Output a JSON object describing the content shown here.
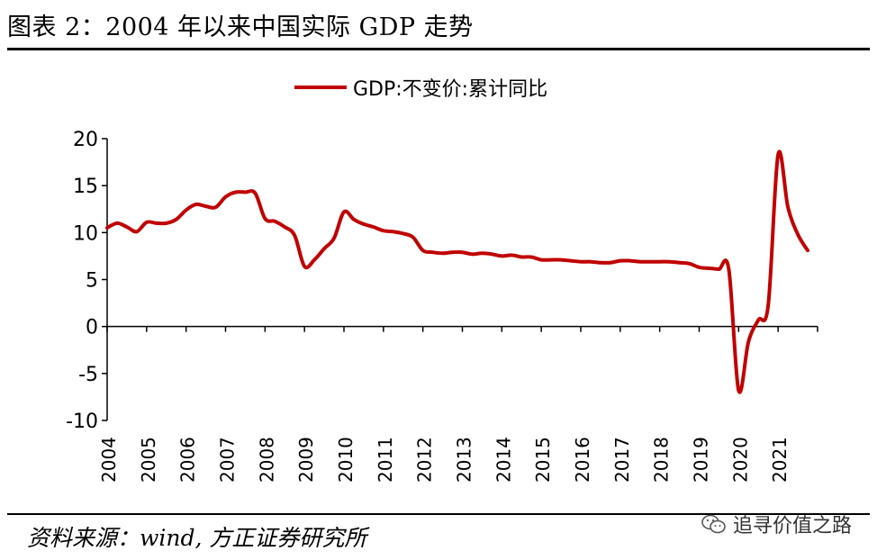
{
  "figure": {
    "title": "图表 2：2004 年以来中国实际 GDP 走势",
    "source": "资料来源：wind, 方正证券研究所",
    "watermark": "追寻价值之路"
  },
  "colors": {
    "line": "#C00000",
    "axis": "#000000"
  },
  "icons": {
    "watermark_icon": "wechat-icon"
  },
  "chart_data": {
    "type": "line",
    "title": "",
    "xlabel": "",
    "ylabel": "",
    "ylim": [
      -10,
      20
    ],
    "yticks": [
      -10,
      -5,
      0,
      5,
      10,
      15,
      20
    ],
    "xlim": [
      2004.0,
      2022.0
    ],
    "xticks": [
      "2004",
      "2005",
      "2006",
      "2007",
      "2008",
      "2009",
      "2010",
      "2011",
      "2012",
      "2013",
      "2014",
      "2015",
      "2016",
      "2017",
      "2018",
      "2019",
      "2020",
      "2021"
    ],
    "legend_position": "top-center",
    "grid": false,
    "series": [
      {
        "name": "GDP:不变价:累计同比",
        "color": "#C00000",
        "points": [
          [
            2004.0,
            10.5
          ],
          [
            2004.25,
            11.0
          ],
          [
            2004.5,
            10.6
          ],
          [
            2004.75,
            10.1
          ],
          [
            2005.0,
            11.1
          ],
          [
            2005.25,
            11.0
          ],
          [
            2005.5,
            11.0
          ],
          [
            2005.75,
            11.4
          ],
          [
            2006.0,
            12.4
          ],
          [
            2006.25,
            13.0
          ],
          [
            2006.5,
            12.8
          ],
          [
            2006.75,
            12.7
          ],
          [
            2007.0,
            13.8
          ],
          [
            2007.25,
            14.3
          ],
          [
            2007.5,
            14.3
          ],
          [
            2007.75,
            14.2
          ],
          [
            2008.0,
            11.5
          ],
          [
            2008.25,
            11.2
          ],
          [
            2008.5,
            10.6
          ],
          [
            2008.75,
            9.7
          ],
          [
            2009.0,
            6.4
          ],
          [
            2009.25,
            7.1
          ],
          [
            2009.5,
            8.3
          ],
          [
            2009.75,
            9.4
          ],
          [
            2010.0,
            12.2
          ],
          [
            2010.25,
            11.4
          ],
          [
            2010.5,
            10.9
          ],
          [
            2010.75,
            10.6
          ],
          [
            2011.0,
            10.2
          ],
          [
            2011.25,
            10.1
          ],
          [
            2011.5,
            9.9
          ],
          [
            2011.75,
            9.5
          ],
          [
            2012.0,
            8.1
          ],
          [
            2012.25,
            7.9
          ],
          [
            2012.5,
            7.8
          ],
          [
            2012.75,
            7.9
          ],
          [
            2013.0,
            7.9
          ],
          [
            2013.25,
            7.7
          ],
          [
            2013.5,
            7.8
          ],
          [
            2013.75,
            7.7
          ],
          [
            2014.0,
            7.5
          ],
          [
            2014.25,
            7.6
          ],
          [
            2014.5,
            7.4
          ],
          [
            2014.75,
            7.4
          ],
          [
            2015.0,
            7.1
          ],
          [
            2015.25,
            7.1
          ],
          [
            2015.5,
            7.1
          ],
          [
            2015.75,
            7.0
          ],
          [
            2016.0,
            6.9
          ],
          [
            2016.25,
            6.9
          ],
          [
            2016.5,
            6.8
          ],
          [
            2016.75,
            6.8
          ],
          [
            2017.0,
            7.0
          ],
          [
            2017.25,
            7.0
          ],
          [
            2017.5,
            6.9
          ],
          [
            2017.75,
            6.9
          ],
          [
            2018.0,
            6.9
          ],
          [
            2018.25,
            6.9
          ],
          [
            2018.5,
            6.8
          ],
          [
            2018.75,
            6.7
          ],
          [
            2019.0,
            6.3
          ],
          [
            2019.25,
            6.2
          ],
          [
            2019.5,
            6.1
          ],
          [
            2019.75,
            6.1
          ],
          [
            2020.0,
            -6.8
          ],
          [
            2020.25,
            -1.6
          ],
          [
            2020.5,
            0.7
          ],
          [
            2020.75,
            2.3
          ],
          [
            2021.0,
            18.3
          ],
          [
            2021.25,
            12.7
          ],
          [
            2021.5,
            9.8
          ],
          [
            2021.75,
            8.1
          ]
        ]
      }
    ]
  }
}
